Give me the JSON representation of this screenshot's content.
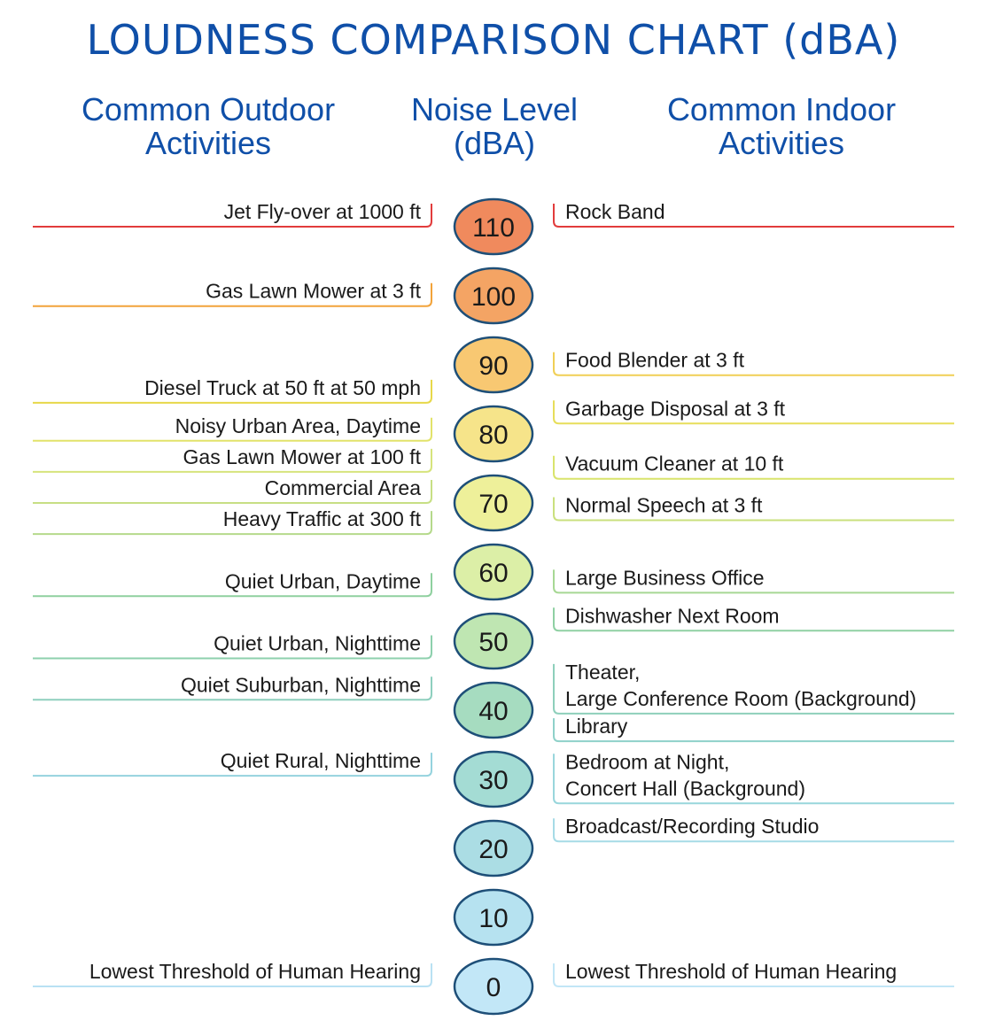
{
  "title": "LOUDNESS COMPARISON CHART (dBA)",
  "headers": {
    "outdoor": [
      "Common Outdoor",
      "Activities"
    ],
    "level": [
      "Noise Level",
      "(dBA)"
    ],
    "indoor": [
      "Common Indoor",
      "Activities"
    ]
  },
  "chart_data": {
    "type": "table",
    "title": "LOUDNESS COMPARISON CHART (dBA)",
    "unit": "dBA",
    "levels": [
      110,
      100,
      90,
      80,
      70,
      60,
      50,
      40,
      30,
      20,
      10,
      0
    ],
    "level_colors": [
      "#f08a5d",
      "#f4a464",
      "#f8c872",
      "#f6e48a",
      "#eef09a",
      "#dcefa7",
      "#bfe6b2",
      "#a6dcc0",
      "#a4dcd4",
      "#abdde4",
      "#b6e2f0",
      "#c2e7f7"
    ],
    "outdoor": [
      {
        "label": "Jet Fly-over at 1000 ft",
        "dBA": 110,
        "color": "#e23c3c"
      },
      {
        "label": "Gas Lawn Mower at 3 ft",
        "dBA": 98.5,
        "color": "#f2a33a"
      },
      {
        "label": "Diesel Truck at 50 ft at 50 mph",
        "dBA": 84.5,
        "color": "#e7d84a"
      },
      {
        "label": "Noisy Urban Area, Daytime",
        "dBA": 79,
        "color": "#e2e36a"
      },
      {
        "label": "Gas Lawn Mower at 100 ft",
        "dBA": 74.5,
        "color": "#d6e47c"
      },
      {
        "label": "Commercial Area",
        "dBA": 70,
        "color": "#c7df84"
      },
      {
        "label": "Heavy Traffic at 300 ft",
        "dBA": 65.5,
        "color": "#b5d98b"
      },
      {
        "label": "Quiet Urban, Daytime",
        "dBA": 56.5,
        "color": "#8fd09f"
      },
      {
        "label": "Quiet Urban, Nighttime",
        "dBA": 47.5,
        "color": "#8dd0ad"
      },
      {
        "label": "Quiet Suburban, Nighttime",
        "dBA": 41.5,
        "color": "#8ecfbe"
      },
      {
        "label": "Quiet Rural, Nighttime",
        "dBA": 30.5,
        "color": "#95d3de"
      },
      {
        "label": "Lowest Threshold of Human Hearing",
        "dBA": 0,
        "color": "#b9e1f3"
      }
    ],
    "indoor": [
      {
        "label": "Rock Band",
        "dBA": 110,
        "color": "#e23c3c"
      },
      {
        "label": "Food Blender at 3 ft",
        "dBA": 88.5,
        "color": "#f0cf55"
      },
      {
        "label": "Garbage Disposal at 3 ft",
        "dBA": 81.5,
        "color": "#e7de5a"
      },
      {
        "label": "Vacuum Cleaner at 10 ft",
        "dBA": 73.5,
        "color": "#d9e46c"
      },
      {
        "label": "Normal Speech at 3 ft",
        "dBA": 67.5,
        "color": "#cae07e"
      },
      {
        "label": "Large Business Office",
        "dBA": 57,
        "color": "#a7d894"
      },
      {
        "label": "Dishwasher Next Room",
        "dBA": 51.5,
        "color": "#8fd0a3"
      },
      {
        "label": "Theater, Large Conference Room (Background)",
        "lines": [
          "Theater,",
          "Large Conference Room (Background)"
        ],
        "dBA": 39.5,
        "color": "#8ecfbb"
      },
      {
        "label": "Library",
        "dBA": 35.5,
        "color": "#8fd1c9"
      },
      {
        "label": "Bedroom at Night, Concert Hall (Background)",
        "lines": [
          "Bedroom at Night,",
          "Concert Hall (Background)"
        ],
        "dBA": 26.5,
        "color": "#99d6dc"
      },
      {
        "label": "Broadcast/Recording Studio",
        "dBA": 21,
        "color": "#a6dbe6"
      },
      {
        "label": "Lowest Threshold of Human Hearing",
        "dBA": 0,
        "color": "#c2e6f6"
      }
    ]
  }
}
